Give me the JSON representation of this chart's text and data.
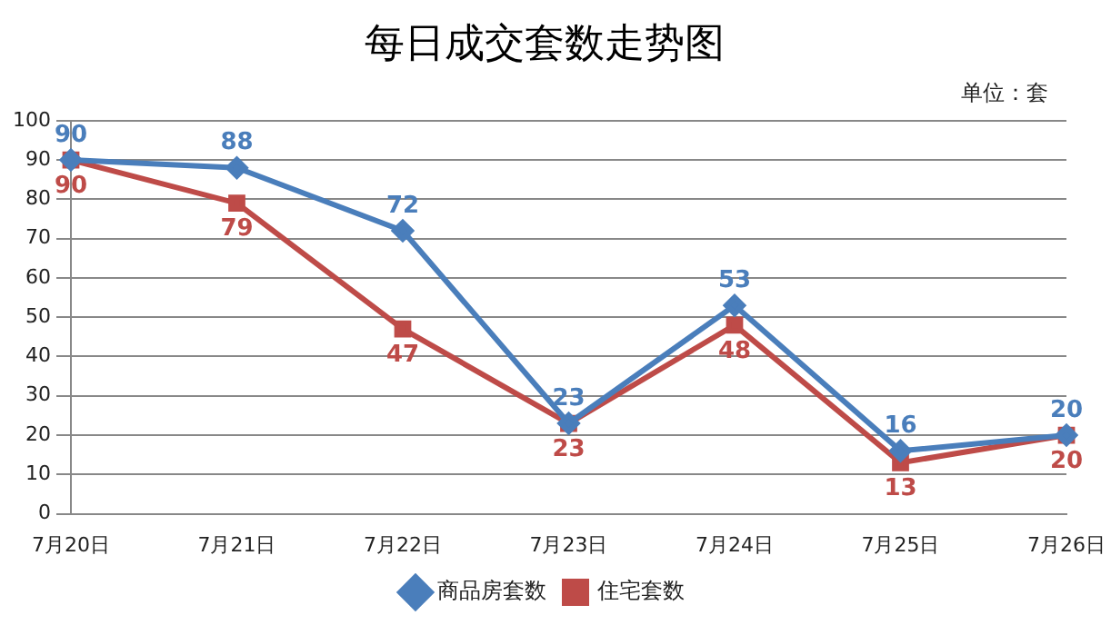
{
  "chart_data": {
    "type": "line",
    "title": "每日成交套数走势图",
    "annotations": [
      "单位：套"
    ],
    "categories": [
      "7月20日",
      "7月21日",
      "7月22日",
      "7月23日",
      "7月24日",
      "7月25日",
      "7月26日"
    ],
    "series": [
      {
        "name": "商品房套数",
        "color": "#4a7ebb",
        "marker": "diamond",
        "values": [
          90,
          88,
          72,
          23,
          53,
          16,
          20
        ]
      },
      {
        "name": "住宅套数",
        "color": "#be4b48",
        "marker": "square",
        "values": [
          90,
          79,
          47,
          23,
          48,
          13,
          20
        ]
      }
    ],
    "ylim": [
      0,
      100
    ],
    "yticks": [
      0,
      10,
      20,
      30,
      40,
      50,
      60,
      70,
      80,
      90,
      100
    ],
    "grid": "y",
    "legend": "bottom",
    "data_labels": true
  }
}
